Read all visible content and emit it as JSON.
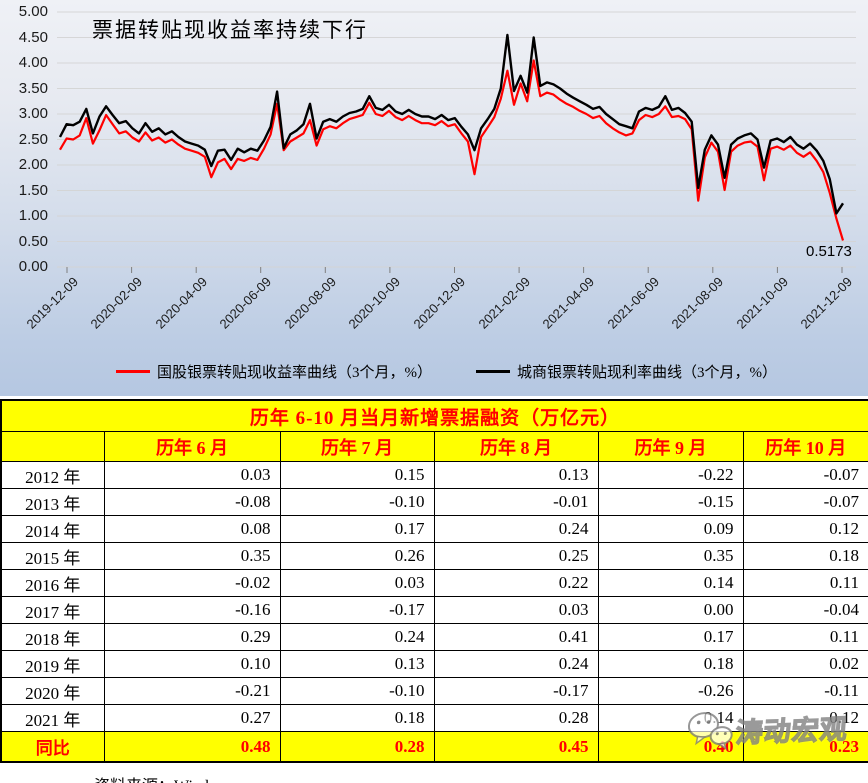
{
  "chart_data": {
    "type": "line",
    "title": "票据转贴现收益率持续下行",
    "ylim": [
      0,
      5
    ],
    "y_tick_step": 0.5,
    "y_tick_labels": [
      "5.00",
      "4.50",
      "4.00",
      "3.50",
      "3.00",
      "2.50",
      "2.00",
      "1.50",
      "1.00",
      "0.50",
      "0.00"
    ],
    "x_tick_labels": [
      "2019-12-09",
      "2020-02-09",
      "2020-04-09",
      "2020-06-09",
      "2020-08-09",
      "2020-10-09",
      "2020-12-09",
      "2021-02-09",
      "2021-04-09",
      "2021-06-09",
      "2021-08-09",
      "2021-10-09",
      "2021-12-09"
    ],
    "grid": true,
    "legend_position": "bottom",
    "annotation": "0.5173",
    "series": [
      {
        "name": "国股银票转贴现收益率曲线（3个月，%）",
        "color": "#ff0000",
        "values": [
          2.3,
          2.52,
          2.5,
          2.58,
          2.92,
          2.42,
          2.68,
          2.98,
          2.8,
          2.62,
          2.66,
          2.54,
          2.46,
          2.64,
          2.48,
          2.54,
          2.44,
          2.5,
          2.4,
          2.32,
          2.28,
          2.24,
          2.16,
          1.76,
          2.05,
          2.12,
          1.92,
          2.12,
          2.08,
          2.14,
          2.1,
          2.32,
          2.6,
          3.2,
          2.29,
          2.46,
          2.54,
          2.62,
          2.88,
          2.38,
          2.7,
          2.76,
          2.72,
          2.82,
          2.9,
          2.94,
          2.98,
          3.22,
          3.0,
          2.96,
          3.06,
          2.94,
          2.88,
          2.96,
          2.88,
          2.82,
          2.82,
          2.78,
          2.86,
          2.76,
          2.8,
          2.62,
          2.46,
          1.82,
          2.55,
          2.74,
          2.94,
          3.3,
          3.85,
          3.18,
          3.6,
          3.25,
          4.05,
          3.35,
          3.42,
          3.38,
          3.28,
          3.2,
          3.14,
          3.06,
          3.0,
          2.92,
          2.96,
          2.82,
          2.72,
          2.64,
          2.58,
          2.62,
          2.88,
          2.98,
          2.94,
          3.0,
          3.15,
          2.94,
          2.96,
          2.9,
          2.7,
          1.3,
          2.15,
          2.44,
          2.26,
          1.51,
          2.26,
          2.38,
          2.44,
          2.46,
          2.36,
          1.7,
          2.32,
          2.36,
          2.3,
          2.38,
          2.24,
          2.16,
          2.25,
          2.08,
          1.86,
          1.45,
          0.95,
          0.52
        ]
      },
      {
        "name": "城商银票转贴现利率曲线（3个月，%）",
        "color": "#000000",
        "values": [
          2.55,
          2.8,
          2.78,
          2.85,
          3.1,
          2.62,
          2.95,
          3.15,
          2.98,
          2.82,
          2.86,
          2.72,
          2.62,
          2.82,
          2.65,
          2.72,
          2.6,
          2.66,
          2.55,
          2.46,
          2.42,
          2.38,
          2.3,
          1.98,
          2.28,
          2.3,
          2.1,
          2.32,
          2.25,
          2.32,
          2.28,
          2.48,
          2.75,
          3.44,
          2.33,
          2.6,
          2.68,
          2.8,
          3.2,
          2.52,
          2.85,
          2.9,
          2.85,
          2.95,
          3.02,
          3.05,
          3.1,
          3.35,
          3.12,
          3.08,
          3.18,
          3.05,
          3.0,
          3.08,
          3.0,
          2.95,
          2.95,
          2.9,
          2.98,
          2.88,
          2.92,
          2.75,
          2.6,
          2.29,
          2.72,
          2.9,
          3.1,
          3.5,
          4.55,
          3.45,
          3.75,
          3.42,
          4.5,
          3.55,
          3.62,
          3.58,
          3.5,
          3.4,
          3.32,
          3.25,
          3.18,
          3.1,
          3.14,
          3.0,
          2.9,
          2.8,
          2.76,
          2.72,
          3.05,
          3.12,
          3.08,
          3.14,
          3.35,
          3.08,
          3.12,
          3.02,
          2.85,
          1.55,
          2.3,
          2.58,
          2.4,
          1.75,
          2.4,
          2.52,
          2.58,
          2.62,
          2.5,
          1.95,
          2.48,
          2.52,
          2.45,
          2.55,
          2.4,
          2.32,
          2.42,
          2.28,
          2.08,
          1.72,
          1.05,
          1.25
        ]
      }
    ]
  },
  "table": {
    "title": "历年 6-10 月当月新增票据融资（万亿元）",
    "columns": [
      "",
      "历年 6 月",
      "历年 7 月",
      "历年 8 月",
      "历年 9 月",
      "历年 10 月"
    ],
    "rows": [
      {
        "label": "2012 年",
        "values": [
          "0.03",
          "0.15",
          "0.13",
          "-0.22",
          "-0.07"
        ]
      },
      {
        "label": "2013 年",
        "values": [
          "-0.08",
          "-0.10",
          "-0.01",
          "-0.15",
          "-0.07"
        ]
      },
      {
        "label": "2014 年",
        "values": [
          "0.08",
          "0.17",
          "0.24",
          "0.09",
          "0.12"
        ]
      },
      {
        "label": "2015 年",
        "values": [
          "0.35",
          "0.26",
          "0.25",
          "0.35",
          "0.18"
        ]
      },
      {
        "label": "2016 年",
        "values": [
          "-0.02",
          "0.03",
          "0.22",
          "0.14",
          "0.11"
        ]
      },
      {
        "label": "2017 年",
        "values": [
          "-0.16",
          "-0.17",
          "0.03",
          "0.00",
          "-0.04"
        ]
      },
      {
        "label": "2018 年",
        "values": [
          "0.29",
          "0.24",
          "0.41",
          "0.17",
          "0.11"
        ]
      },
      {
        "label": "2019 年",
        "values": [
          "0.10",
          "0.13",
          "0.24",
          "0.18",
          "0.02"
        ]
      },
      {
        "label": "2020 年",
        "values": [
          "-0.21",
          "-0.10",
          "-0.17",
          "-0.26",
          "-0.11"
        ]
      },
      {
        "label": "2021 年",
        "values": [
          "0.27",
          "0.18",
          "0.28",
          "0.14",
          "0.12"
        ]
      },
      {
        "label": "同比",
        "values": [
          "0.48",
          "0.28",
          "0.45",
          "0.40",
          "0.23"
        ],
        "highlight": true
      }
    ]
  },
  "footer": {
    "source_label": "资料来源：Wind"
  },
  "watermark": {
    "text": "涛动宏观"
  },
  "colors": {
    "accent_red": "#ff0000",
    "highlight_yellow": "#ffff00",
    "line_black": "#000000"
  }
}
